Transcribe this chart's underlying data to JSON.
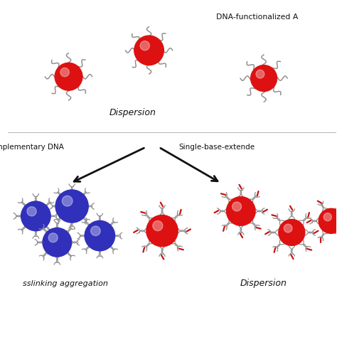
{
  "background_color": "#ffffff",
  "particle_red": "#dd1111",
  "particle_blue": "#3030bb",
  "strand_color": "#909090",
  "strand_red": "#cc1111",
  "arrow_color": "#111111",
  "text_color": "#111111",
  "title_text": "DNA-functionalized A",
  "label_dispersion_top": "Dispersion",
  "label_left": "nplementary DNA",
  "label_right": "Single-base-extende",
  "label_agg": "sslinking aggregation",
  "label_disp_bot": "Dispersion",
  "fig_width": 4.74,
  "fig_height": 4.74,
  "dpi": 100
}
